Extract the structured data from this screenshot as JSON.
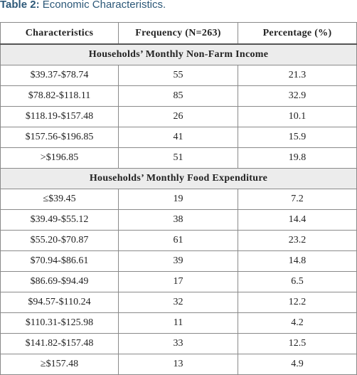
{
  "caption": {
    "label": "Table 2:",
    "text": "Economic Characteristics."
  },
  "table": {
    "headers": [
      "Characteristics",
      "Frequency (N=263)",
      "Percentage (%)"
    ],
    "sections": [
      {
        "title": "Households’ Monthly Non-Farm Income",
        "rows": [
          [
            "$39.37-$78.74",
            "55",
            "21.3"
          ],
          [
            "$78.82-$118.11",
            "85",
            "32.9"
          ],
          [
            "$118.19-$157.48",
            "26",
            "10.1"
          ],
          [
            "$157.56-$196.85",
            "41",
            "15.9"
          ],
          [
            ">$196.85",
            "51",
            "19.8"
          ]
        ]
      },
      {
        "title": "Households’ Monthly Food Expenditure",
        "rows": [
          [
            "≤$39.45",
            "19",
            "7.2"
          ],
          [
            "$39.49-$55.12",
            "38",
            "14.4"
          ],
          [
            "$55.20-$70.87",
            "61",
            "23.2"
          ],
          [
            "$70.94-$86.61",
            "39",
            "14.8"
          ],
          [
            "$86.69-$94.49",
            "17",
            "6.5"
          ],
          [
            "$94.57-$110.24",
            "32",
            "12.2"
          ],
          [
            "$110.31-$125.98",
            "11",
            "4.2"
          ],
          [
            "$141.82-$157.48",
            "33",
            "12.5"
          ],
          [
            "≥$157.48",
            "13",
            "4.9"
          ]
        ]
      }
    ]
  }
}
